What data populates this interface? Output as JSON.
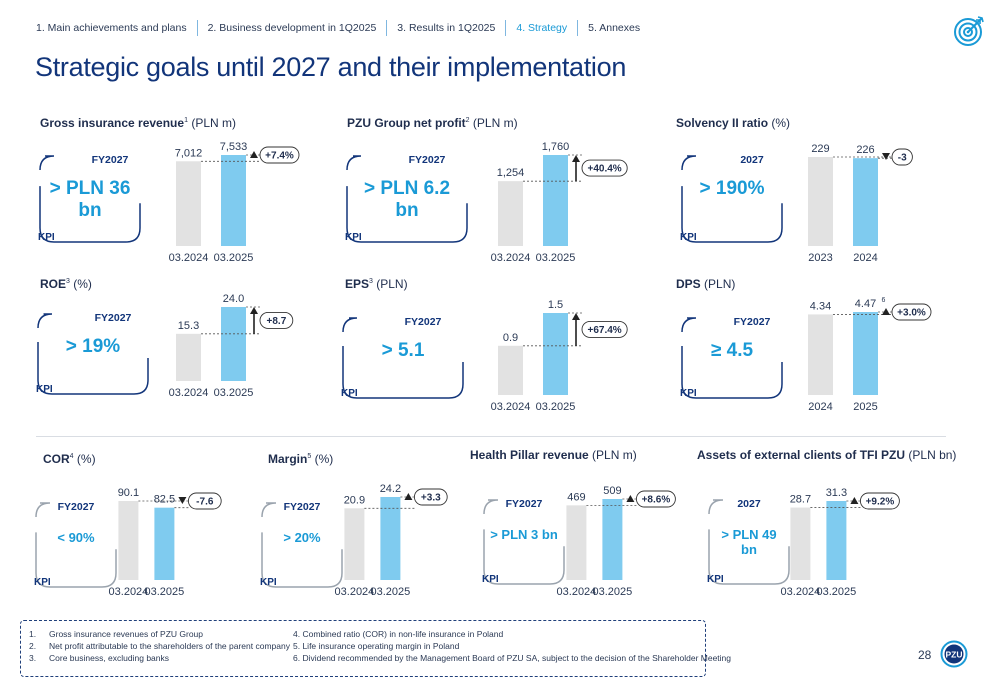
{
  "nav": [
    {
      "label": "1. Main achievements and plans",
      "active": false
    },
    {
      "label": "2. Business development in 1Q2025",
      "active": false
    },
    {
      "label": "3. Results in 1Q2025",
      "active": false
    },
    {
      "label": "4. Strategy",
      "active": true
    },
    {
      "label": "5. Annexes",
      "active": false
    }
  ],
  "title": "Strategic goals until 2027 and their implementation",
  "colors": {
    "accent": "#1a9ad6",
    "navy": "#12357a",
    "bar_prev": "#e2e2e2",
    "bar_curr": "#7fcbef"
  },
  "icons": [
    "target-icon",
    "pzu-logo"
  ],
  "kpi_label": "KPI",
  "sections": [
    {
      "id": "gross-revenue",
      "title_bold": "Gross insurance revenue",
      "sup": "1",
      "title_rest": " (PLN m)",
      "kpi": {
        "period": "FY2027",
        "goal": "> PLN 36 bn"
      },
      "chart_data": {
        "type": "bar",
        "categories": [
          "03.2024",
          "03.2025"
        ],
        "values": [
          7012,
          7533
        ],
        "value_labels": [
          "7,012",
          "7,533"
        ],
        "change": "+7.4%"
      }
    },
    {
      "id": "net-profit",
      "title_bold": "PZU Group net profit",
      "sup": "2",
      "title_rest": " (PLN m)",
      "kpi": {
        "period": "FY2027",
        "goal": "> PLN 6.2 bn"
      },
      "chart_data": {
        "type": "bar",
        "categories": [
          "03.2024",
          "03.2025"
        ],
        "values": [
          1254,
          1760
        ],
        "value_labels": [
          "1,254",
          "1,760"
        ],
        "change": "+40.4%"
      }
    },
    {
      "id": "solvency",
      "title_bold": "Solvency II ratio",
      "sup": "",
      "title_rest": " (%)",
      "kpi": {
        "period": "2027",
        "goal": "> 190%"
      },
      "chart_data": {
        "type": "bar",
        "categories": [
          "2023",
          "2024"
        ],
        "values": [
          229,
          226
        ],
        "value_labels": [
          "229",
          "226"
        ],
        "change": "-3"
      }
    },
    {
      "id": "roe",
      "title_bold": "ROE",
      "sup": "3",
      "title_rest": " (%)",
      "kpi": {
        "period": "FY2027",
        "goal": "> 19%"
      },
      "chart_data": {
        "type": "bar",
        "categories": [
          "03.2024",
          "03.2025"
        ],
        "values": [
          15.3,
          24.0
        ],
        "value_labels": [
          "15.3",
          "24.0"
        ],
        "change": "+8.7"
      }
    },
    {
      "id": "eps",
      "title_bold": "EPS",
      "sup": "3",
      "title_rest": " (PLN)",
      "kpi": {
        "period": "FY2027",
        "goal": "> 5.1"
      },
      "chart_data": {
        "type": "bar",
        "categories": [
          "03.2024",
          "03.2025"
        ],
        "values": [
          0.9,
          1.5
        ],
        "value_labels": [
          "0.9",
          "1.5"
        ],
        "change": "+67.4%"
      }
    },
    {
      "id": "dps",
      "title_bold": "DPS",
      "sup": "",
      "title_rest": " (PLN)",
      "kpi": {
        "period": "FY2027",
        "goal": "≥ 4.5"
      },
      "chart_data": {
        "type": "bar",
        "categories": [
          "2024",
          "2025"
        ],
        "values": [
          4.34,
          4.47
        ],
        "value_labels": [
          "4.34",
          "4.47"
        ],
        "value_sup": [
          "",
          "6"
        ],
        "change": "+3.0%"
      }
    },
    {
      "id": "cor",
      "title_bold": "COR",
      "sup": "4",
      "title_rest": " (%)",
      "kpi": {
        "period": "FY2027",
        "goal": "< 90%"
      },
      "chart_data": {
        "type": "bar",
        "categories": [
          "03.2024",
          "03.2025"
        ],
        "values": [
          90.1,
          82.5
        ],
        "value_labels": [
          "90.1",
          "82.5"
        ],
        "change": "-7.6"
      }
    },
    {
      "id": "margin",
      "title_bold": "Margin",
      "sup": "5",
      "title_rest": " (%)",
      "kpi": {
        "period": "FY2027",
        "goal": "> 20%"
      },
      "chart_data": {
        "type": "bar",
        "categories": [
          "03.2024",
          "03.2025"
        ],
        "values": [
          20.9,
          24.2
        ],
        "value_labels": [
          "20.9",
          "24.2"
        ],
        "change": "+3.3"
      }
    },
    {
      "id": "health",
      "title_bold": "Health Pillar revenue",
      "sup": "",
      "title_rest": " (PLN m)",
      "kpi": {
        "period": "FY2027",
        "goal": "> PLN 3 bn"
      },
      "chart_data": {
        "type": "bar",
        "categories": [
          "03.2024",
          "03.2025"
        ],
        "values": [
          469,
          509
        ],
        "value_labels": [
          "469",
          "509"
        ],
        "change": "+8.6%"
      }
    },
    {
      "id": "tfi",
      "title_bold": "Assets of external clients of TFI PZU",
      "sup": "",
      "title_rest": "  (PLN bn)",
      "kpi": {
        "period": "2027",
        "goal": "> PLN 49 bn"
      },
      "chart_data": {
        "type": "bar",
        "categories": [
          "03.2024",
          "03.2025"
        ],
        "values": [
          28.7,
          31.3
        ],
        "value_labels": [
          "28.7",
          "31.3"
        ],
        "change": "+9.2%"
      }
    }
  ],
  "footnotes_left": [
    {
      "num": "1.",
      "text": "Gross insurance revenues of PZU Group"
    },
    {
      "num": "2.",
      "text": "Net profit attributable to the shareholders of the parent company"
    },
    {
      "num": "3.",
      "text": "Core business, excluding banks"
    }
  ],
  "footnotes_right": [
    "4. Combined ratio (COR) in non-life insurance in Poland",
    "5. Life insurance operating margin in Poland",
    "6. Dividend recommended by the Management Board of PZU SA, subject to the decision of the Shareholder Meeting"
  ],
  "page_number": "28",
  "logo_text": "PZU"
}
